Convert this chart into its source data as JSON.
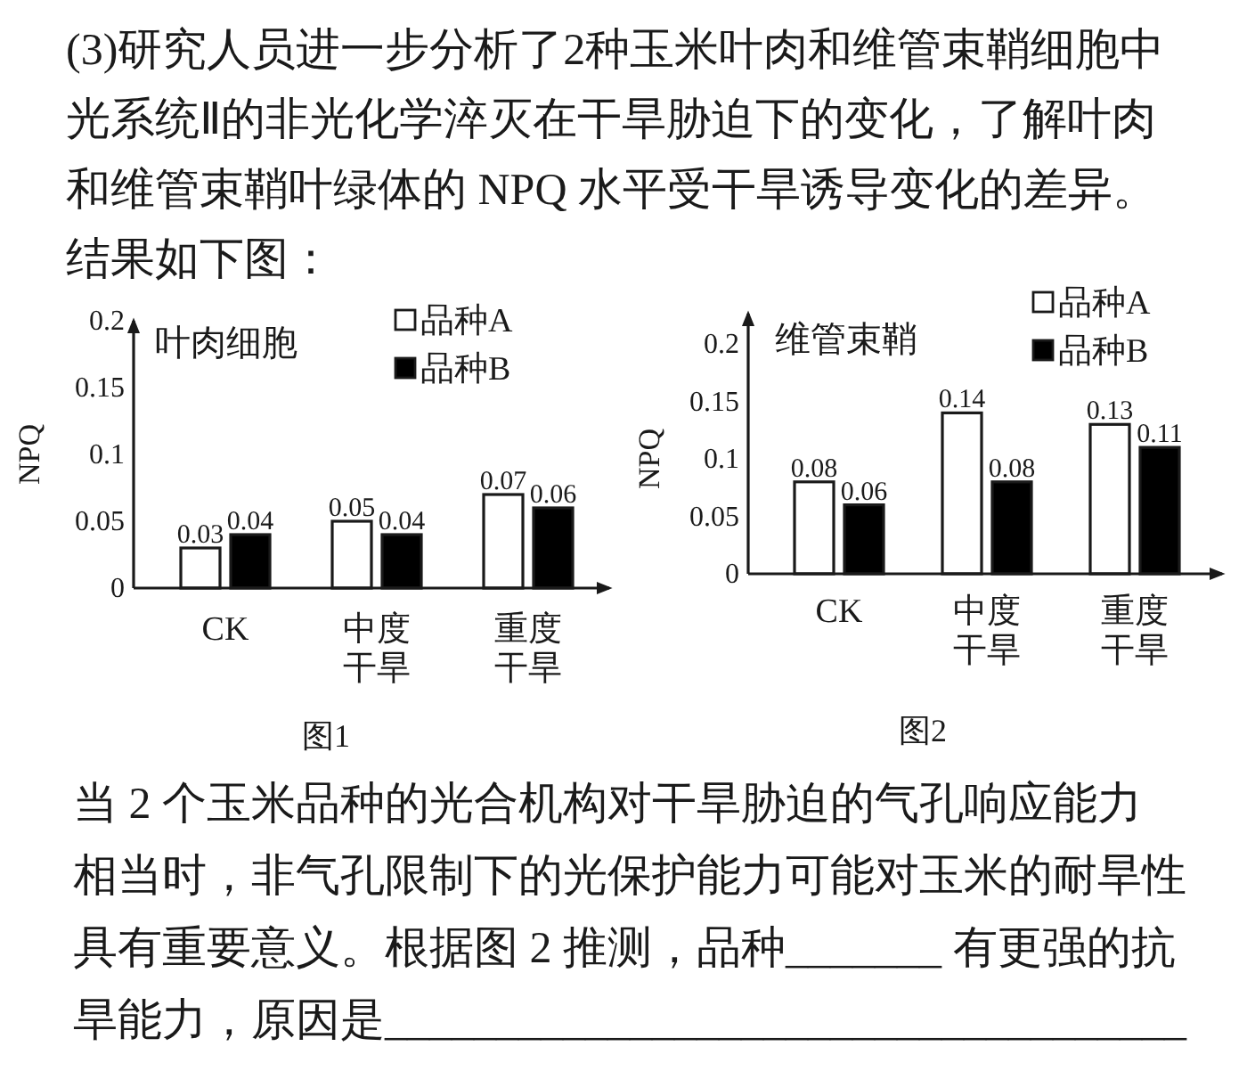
{
  "chart_data": [
    {
      "type": "other",
      "annotations": [
        "(3)研究人员进一步分析了2种玉米叶肉和维管束鞘细胞中",
        "光系统Ⅱ的非光化学淬灭在干旱胁迫下的变化，了解叶肉",
        "和维管束鞘叶绿体的 NPQ 水平受干旱诱导变化的差异。",
        "结果如下图："
      ]
    },
    {
      "type": "bar",
      "title": "叶肉细胞",
      "ylabel": "NPQ",
      "categories": [
        "CK",
        "中度干旱",
        "重度干旱"
      ],
      "series": [
        {
          "name": "品种A",
          "color": "#ffffff",
          "values": [
            0.03,
            0.05,
            0.07
          ]
        },
        {
          "name": "品种B",
          "color": "#000000",
          "values": [
            0.04,
            0.04,
            0.06
          ]
        }
      ],
      "ylim": [
        0,
        0.2
      ],
      "yticks": [
        0,
        0.05,
        0.1,
        0.15,
        0.2
      ],
      "data_labels": true,
      "legend": "top right",
      "annotations": [
        "图1"
      ]
    },
    {
      "type": "bar",
      "title": "维管束鞘",
      "ylabel": "NPQ",
      "categories": [
        "CK",
        "中度干旱",
        "重度干旱"
      ],
      "series": [
        {
          "name": "品种A",
          "color": "#ffffff",
          "values": [
            0.08,
            0.14,
            0.13
          ]
        },
        {
          "name": "品种B",
          "color": "#000000",
          "values": [
            0.06,
            0.08,
            0.11
          ]
        }
      ],
      "ylim": [
        0,
        0.2
      ],
      "yticks": [
        0,
        0.05,
        0.1,
        0.15,
        0.2
      ],
      "data_labels": true,
      "legend": "top right",
      "annotations": [
        "图2"
      ]
    },
    {
      "type": "other",
      "annotations": [
        "当 2 个玉米品种的光合机构对干旱胁迫的气孔响应能力",
        "相当时，非气孔限制下的光保护能力可能对玉米的耐旱性",
        "具有重要意义。根据图 2 推测，品种_______ 有更强的抗",
        "旱能力，原因是____________________________________"
      ]
    }
  ]
}
